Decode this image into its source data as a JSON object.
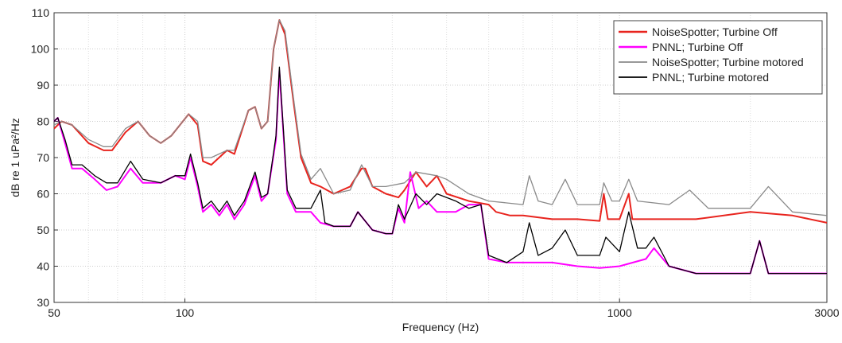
{
  "chart_data": {
    "type": "line",
    "x_label": "Frequency (Hz)",
    "y_label": "dB re 1 uPa²/Hz",
    "xscale": "log",
    "xlim": [
      50,
      3000
    ],
    "xticks": [
      50,
      100,
      1000,
      3000
    ],
    "ylim": [
      30,
      110
    ],
    "yticks": [
      30,
      40,
      50,
      60,
      70,
      80,
      90,
      100,
      110
    ],
    "grid": true,
    "minor_grid": true,
    "legend_position": "upper-right",
    "series": [
      {
        "name": "NoiseSpotter; Turbine Off",
        "color": "#e8241e",
        "width": 2,
        "x": [
          50,
          52,
          55,
          60,
          65,
          68,
          73,
          78,
          83,
          88,
          93,
          102,
          107,
          110,
          115,
          125,
          130,
          140,
          145,
          150,
          155,
          160,
          165,
          170,
          178,
          185,
          195,
          205,
          220,
          240,
          255,
          260,
          270,
          290,
          310,
          320,
          340,
          360,
          380,
          400,
          450,
          500,
          520,
          560,
          600,
          700,
          800,
          900,
          920,
          940,
          1000,
          1050,
          1070,
          1500,
          2000,
          2500,
          3000
        ],
        "values": [
          78,
          80,
          79,
          74,
          72,
          72,
          77,
          80,
          76,
          74,
          76,
          82,
          79,
          69,
          68,
          72,
          71,
          83,
          84,
          78,
          80,
          100,
          108,
          104,
          85,
          70,
          63,
          62,
          60,
          62,
          67,
          67,
          62,
          60,
          59,
          61,
          66,
          62,
          65,
          60,
          58,
          57,
          55,
          54,
          54,
          53,
          53,
          52.5,
          60,
          53,
          53,
          60,
          53,
          53,
          55,
          54,
          52
        ]
      },
      {
        "name": "PNNL; Turbine Off",
        "color": "#ff00ff",
        "width": 2,
        "x": [
          50,
          51,
          53,
          55,
          58,
          62,
          66,
          70,
          75,
          80,
          88,
          95,
          100,
          103,
          107,
          110,
          115,
          120,
          125,
          130,
          137,
          145,
          150,
          155,
          162,
          165,
          172,
          180,
          195,
          205,
          220,
          240,
          250,
          270,
          290,
          300,
          310,
          320,
          330,
          345,
          360,
          380,
          420,
          450,
          480,
          500,
          550,
          600,
          700,
          800,
          900,
          1000,
          1150,
          1200,
          1300,
          1500,
          2000,
          2100,
          2200,
          3000
        ],
        "values": [
          80,
          81,
          74,
          67,
          67,
          64,
          61,
          62,
          67,
          63,
          63,
          65,
          64,
          70,
          62,
          55,
          57,
          54,
          57,
          53,
          57,
          65,
          58,
          60,
          75,
          94,
          60,
          55,
          55,
          52,
          51,
          51,
          55,
          50,
          49,
          49,
          56,
          52,
          66,
          56,
          58,
          55,
          55,
          57,
          57,
          42,
          41,
          41,
          41,
          40,
          39.5,
          40,
          42,
          45,
          40,
          38,
          38,
          47,
          38,
          38
        ]
      },
      {
        "name": "NoiseSpotter; Turbine motored",
        "color": "#8a8a8a",
        "width": 1.3,
        "x": [
          50,
          52,
          55,
          60,
          65,
          68,
          73,
          78,
          83,
          88,
          93,
          102,
          107,
          110,
          115,
          125,
          130,
          140,
          145,
          150,
          155,
          160,
          165,
          170,
          178,
          185,
          195,
          205,
          220,
          240,
          255,
          270,
          290,
          320,
          340,
          380,
          400,
          450,
          500,
          600,
          620,
          650,
          700,
          750,
          800,
          900,
          920,
          960,
          1000,
          1050,
          1100,
          1300,
          1450,
          1600,
          2000,
          2200,
          2500,
          3000
        ],
        "values": [
          79,
          80,
          79,
          75,
          73,
          73,
          78,
          80,
          76,
          74,
          76,
          82,
          80,
          70,
          70,
          72,
          72,
          83,
          84,
          78,
          80,
          100,
          108,
          105,
          86,
          71,
          64,
          67,
          60,
          61,
          68,
          62,
          62,
          63,
          66,
          65,
          64,
          60,
          58,
          57,
          65,
          58,
          57,
          64,
          57,
          57,
          63,
          58,
          58,
          64,
          58,
          57,
          61,
          56,
          56,
          62,
          55,
          54
        ]
      },
      {
        "name": "PNNL; Turbine motored",
        "color": "#000000",
        "width": 1.3,
        "x": [
          50,
          51,
          53,
          55,
          58,
          62,
          66,
          70,
          75,
          80,
          88,
          95,
          100,
          103,
          107,
          110,
          115,
          120,
          125,
          130,
          137,
          145,
          150,
          155,
          162,
          165,
          172,
          180,
          195,
          205,
          210,
          220,
          240,
          250,
          270,
          290,
          300,
          310,
          320,
          340,
          360,
          380,
          420,
          450,
          480,
          500,
          550,
          600,
          620,
          650,
          700,
          750,
          800,
          900,
          930,
          1000,
          1050,
          1100,
          1150,
          1200,
          1300,
          1500,
          2000,
          2100,
          2200,
          3000
        ],
        "values": [
          80,
          81,
          75,
          68,
          68,
          65,
          63,
          63,
          69,
          64,
          63,
          65,
          65,
          71,
          63,
          56,
          58,
          55,
          58,
          54,
          58,
          66,
          59,
          60,
          76,
          95,
          61,
          56,
          56,
          61,
          52,
          51,
          51,
          55,
          50,
          49,
          49,
          57,
          53,
          60,
          57,
          60,
          58,
          56,
          57,
          43,
          41,
          44,
          52,
          43,
          45,
          50,
          43,
          43,
          48,
          44,
          55,
          45,
          45,
          48,
          40,
          38,
          38,
          47,
          38,
          38
        ]
      }
    ]
  }
}
